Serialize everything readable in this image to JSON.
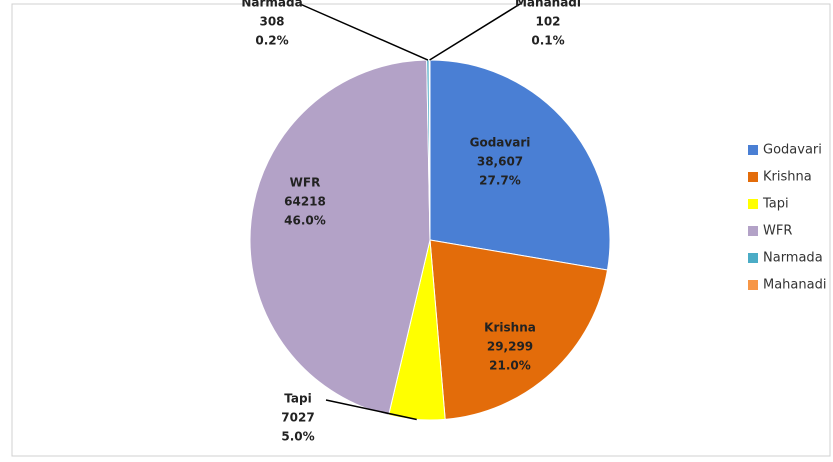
{
  "chart_data": {
    "type": "pie",
    "categories": [
      "Godavari",
      "Krishna",
      "Tapi",
      "WFR",
      "Narmada",
      "Mahanadi"
    ],
    "values": [
      38607,
      29299,
      7027,
      64218,
      308,
      102
    ],
    "value_labels": [
      "38,607",
      "29,299",
      "7027",
      "64218",
      "308",
      "102"
    ],
    "percent_labels": [
      "27.7%",
      "21.0%",
      "5.0%",
      "46.0%",
      "0.2%",
      "0.1%"
    ],
    "colors": [
      "#4a7fd4",
      "#e36c0a",
      "#ffff00",
      "#b3a2c7",
      "#4bacc6",
      "#f79646"
    ],
    "legend": "right"
  }
}
